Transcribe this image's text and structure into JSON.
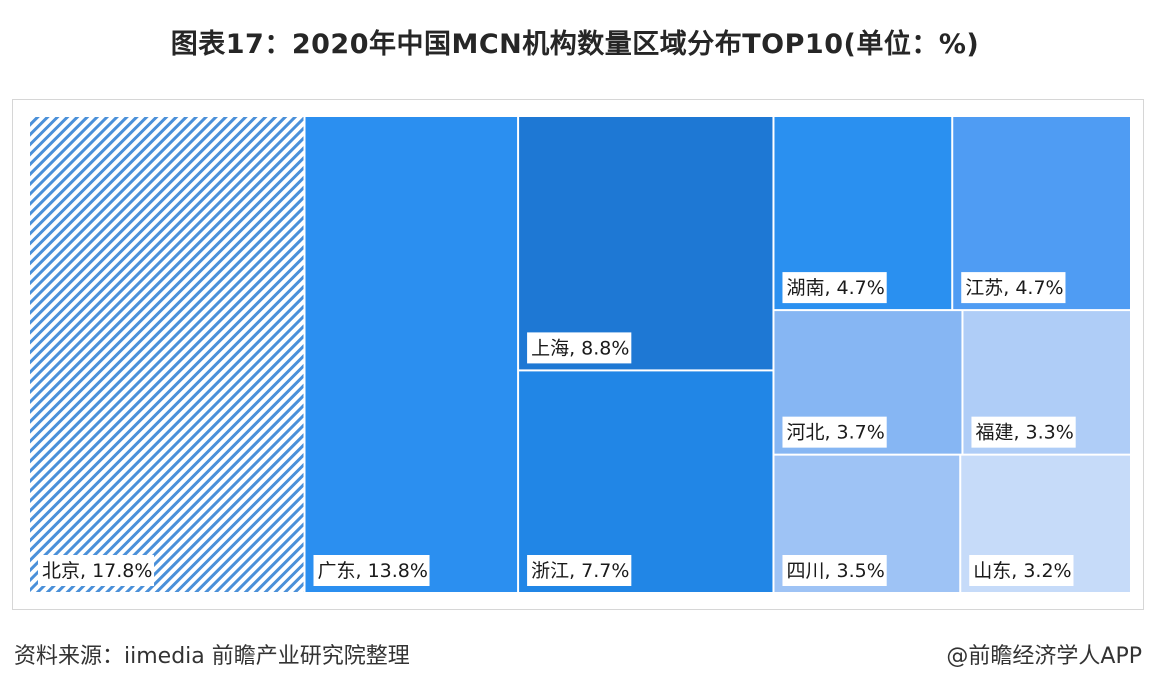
{
  "title": "图表17：2020年中国MCN机构数量区域分布TOP10(单位：%)",
  "source": "资料来源：iimedia 前瞻产业研究院整理",
  "credit": "@前瞻经济学人APP",
  "colors": {
    "beijing": "#4a90d9",
    "guangdong": "#2b8ff0",
    "shanghai": "#1e78d4",
    "zhejiang": "#2186e6",
    "hunan": "#2a90f0",
    "jiangsu": "#4f9cf3",
    "hebei": "#86b6f3",
    "fujian": "#afcdf7",
    "sichuan": "#9ec3f5",
    "shandong": "#c6dbf9"
  },
  "chart_data": {
    "type": "treemap",
    "title": "图表17：2020年中国MCN机构数量区域分布TOP10(单位：%)",
    "unit": "%",
    "items": [
      {
        "name": "北京",
        "value": 17.8,
        "label": "北京, 17.8%",
        "color_key": "beijing",
        "pattern": "hatched"
      },
      {
        "name": "广东",
        "value": 13.8,
        "label": "广东, 13.8%",
        "color_key": "guangdong"
      },
      {
        "name": "上海",
        "value": 8.8,
        "label": "上海, 8.8%",
        "color_key": "shanghai"
      },
      {
        "name": "浙江",
        "value": 7.7,
        "label": "浙江, 7.7%",
        "color_key": "zhejiang"
      },
      {
        "name": "湖南",
        "value": 4.7,
        "label": "湖南, 4.7%",
        "color_key": "hunan"
      },
      {
        "name": "江苏",
        "value": 4.7,
        "label": "江苏, 4.7%",
        "color_key": "jiangsu"
      },
      {
        "name": "河北",
        "value": 3.7,
        "label": "河北, 3.7%",
        "color_key": "hebei"
      },
      {
        "name": "福建",
        "value": 3.3,
        "label": "福建, 3.3%",
        "color_key": "fujian"
      },
      {
        "name": "四川",
        "value": 3.5,
        "label": "四川, 3.5%",
        "color_key": "sichuan"
      },
      {
        "name": "山东",
        "value": 3.2,
        "label": "山东, 3.2%",
        "color_key": "shandong"
      }
    ]
  }
}
